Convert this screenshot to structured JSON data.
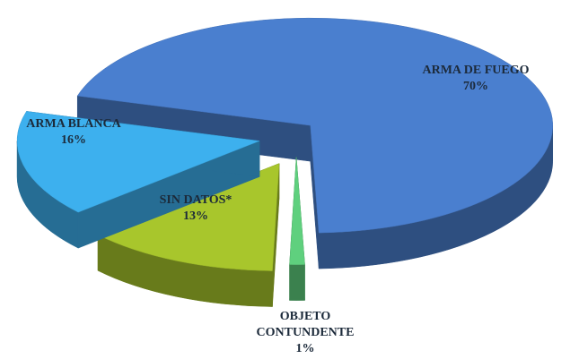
{
  "chart_data": {
    "type": "pie",
    "categories": [
      "ARMA DE FUEGO",
      "OBJETO CONTUNDENTE",
      "SIN DATOS*",
      "ARMA BLANCA"
    ],
    "values": [
      70,
      1,
      13,
      16
    ],
    "value_labels": [
      "70%",
      "1%",
      "13%",
      "16%"
    ],
    "colors": [
      "#4a7fcf",
      "#5fd07e",
      "#a8c62c",
      "#3db0ee"
    ]
  }
}
